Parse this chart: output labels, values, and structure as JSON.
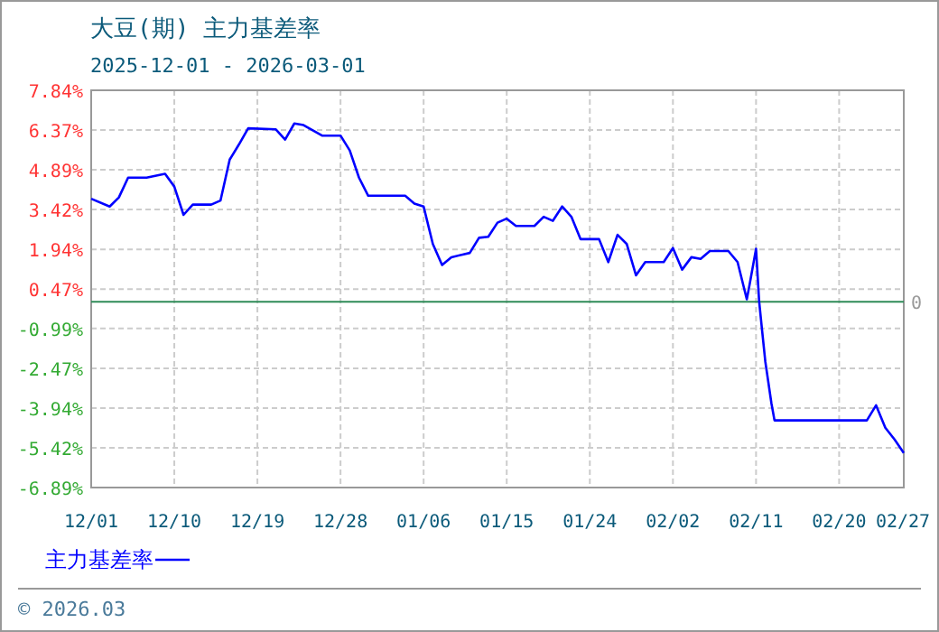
{
  "chart_data": {
    "type": "line",
    "title": "大豆(期) 主力基差率",
    "subtitle": "2025-12-01 - 2026-03-01",
    "annotations": [
      "© 2026.03"
    ],
    "x": [
      "2025-12-01",
      "2025-12-03",
      "2025-12-04",
      "2025-12-05",
      "2025-12-07",
      "2025-12-09",
      "2025-12-10",
      "2025-12-11",
      "2025-12-12",
      "2025-12-14",
      "2025-12-15",
      "2025-12-16",
      "2025-12-17",
      "2025-12-18",
      "2025-12-21",
      "2025-12-22",
      "2025-12-23",
      "2025-12-24",
      "2025-12-26",
      "2025-12-28",
      "2025-12-29",
      "2025-12-30",
      "2025-12-31",
      "2026-01-04",
      "2026-01-05",
      "2026-01-06",
      "2026-01-07",
      "2026-01-08",
      "2026-01-09",
      "2026-01-11",
      "2026-01-12",
      "2026-01-13",
      "2026-01-14",
      "2026-01-15",
      "2026-01-16",
      "2026-01-18",
      "2026-01-19",
      "2026-01-20",
      "2026-01-21",
      "2026-01-22",
      "2026-01-23",
      "2026-01-25",
      "2026-01-26",
      "2026-01-27",
      "2026-01-28",
      "2026-01-29",
      "2026-01-30",
      "2026-02-01",
      "2026-02-02",
      "2026-02-03",
      "2026-02-04",
      "2026-02-05",
      "2026-02-06",
      "2026-02-08",
      "2026-02-09",
      "2026-02-10",
      "2026-02-10T08:00",
      "2026-02-11",
      "2026-02-11T08:00",
      "2026-02-11T16:00",
      "2026-02-12",
      "2026-02-12T16:00",
      "2026-02-13",
      "2026-02-23",
      "2026-02-24",
      "2026-02-25",
      "2026-02-26",
      "2026-02-27"
    ],
    "series": [
      {
        "name": "主力基差率",
        "color": "#0000ff",
        "values": [
          3.82,
          3.53,
          3.87,
          4.6,
          4.6,
          4.74,
          4.27,
          3.22,
          3.6,
          3.6,
          3.75,
          5.27,
          5.83,
          6.43,
          6.39,
          6.01,
          6.61,
          6.55,
          6.16,
          6.16,
          5.61,
          4.6,
          3.93,
          3.93,
          3.64,
          3.53,
          2.14,
          1.36,
          1.65,
          1.81,
          2.37,
          2.41,
          2.93,
          3.08,
          2.81,
          2.81,
          3.15,
          3.0,
          3.53,
          3.15,
          2.32,
          2.32,
          1.47,
          2.48,
          2.14,
          0.98,
          1.47,
          1.47,
          1.99,
          1.19,
          1.65,
          1.59,
          1.88,
          1.88,
          1.47,
          0.09,
          0.69,
          1.96,
          0.02,
          -1.1,
          -2.21,
          -3.77,
          -4.4,
          -4.4,
          -3.84,
          -4.67,
          -5.11,
          -5.61
        ]
      }
    ],
    "xlim": [
      "2025-12-01",
      "2026-02-27"
    ],
    "xticks": [
      {
        "value": "2025-12-01",
        "label": "12/01"
      },
      {
        "value": "2025-12-10",
        "label": "12/10"
      },
      {
        "value": "2025-12-19",
        "label": "12/19"
      },
      {
        "value": "2025-12-28",
        "label": "12/28"
      },
      {
        "value": "2026-01-06",
        "label": "01/06"
      },
      {
        "value": "2026-01-15",
        "label": "01/15"
      },
      {
        "value": "2026-01-24",
        "label": "01/24"
      },
      {
        "value": "2026-02-02",
        "label": "02/02"
      },
      {
        "value": "2026-02-11",
        "label": "02/11"
      },
      {
        "value": "2026-02-20",
        "label": "02/20"
      },
      {
        "value": "2026-02-27",
        "label": "02/27"
      }
    ],
    "ylim": [
      -6.89,
      7.84
    ],
    "yticks": [
      {
        "value": 7.84,
        "label": "7.84%"
      },
      {
        "value": 6.37,
        "label": "6.37%"
      },
      {
        "value": 4.89,
        "label": "4.89%"
      },
      {
        "value": 3.42,
        "label": "3.42%"
      },
      {
        "value": 1.94,
        "label": "1.94%"
      },
      {
        "value": 0.47,
        "label": "0.47%"
      },
      {
        "value": -0.99,
        "label": "-0.99%"
      },
      {
        "value": -2.47,
        "label": "-2.47%"
      },
      {
        "value": -3.94,
        "label": "-3.94%"
      },
      {
        "value": -5.42,
        "label": "-5.42%"
      },
      {
        "value": -6.89,
        "label": "-6.89%"
      }
    ],
    "ref_lines": [
      {
        "axis": "y",
        "value": 0,
        "label": "0",
        "color": "#2e8b57"
      }
    ],
    "grid": true,
    "legend": "bottom left",
    "marker": "none",
    "line_style": "solid"
  }
}
